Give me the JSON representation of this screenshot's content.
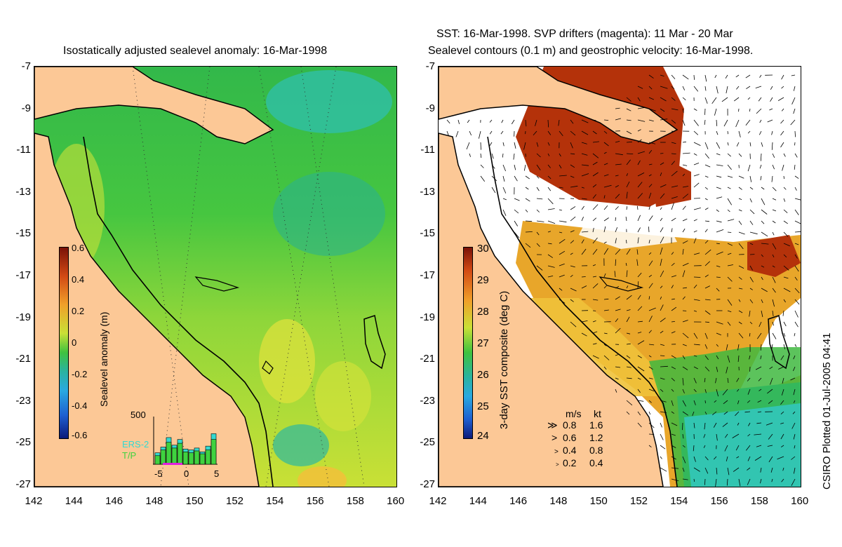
{
  "left_panel": {
    "title": "Isostatically adjusted sealevel anomaly: 16-Mar-1998",
    "colorbar": {
      "label": "Sealevel anomaly (m)",
      "ticks": [
        "0.6",
        "0.4",
        "0.2",
        "0",
        "-0.2",
        "-0.4",
        "-0.6"
      ]
    },
    "histogram": {
      "ymax_label": "500",
      "legend_ers": "ERS-2",
      "legend_tp": "T/P",
      "xticks": [
        "-5",
        "0",
        "5"
      ],
      "bars": [
        {
          "ers": 120,
          "tp": 90
        },
        {
          "ers": 180,
          "tp": 150
        },
        {
          "ers": 280,
          "tp": 230
        },
        {
          "ers": 200,
          "tp": 170
        },
        {
          "ers": 260,
          "tp": 220
        },
        {
          "ers": 160,
          "tp": 130
        },
        {
          "ers": 150,
          "tp": 120
        },
        {
          "ers": 170,
          "tp": 140
        },
        {
          "ers": 130,
          "tp": 110
        },
        {
          "ers": 190,
          "tp": 150
        },
        {
          "ers": 320,
          "tp": 260
        }
      ]
    }
  },
  "right_panel": {
    "title_line1": "SST: 16-Mar-1998. SVP drifters (magenta): 11 Mar - 20 Mar",
    "title_line2": "Sealevel contours (0.1 m) and geostrophic velocity: 16-Mar-1998.",
    "colorbar": {
      "label": "3-day SST composite (deg C)",
      "ticks": [
        "30",
        "29",
        "28",
        "27",
        "26",
        "25",
        "24"
      ]
    },
    "velocity_legend": {
      "header_ms": "m/s",
      "header_kt": "kt",
      "rows": [
        {
          "ms": "0.8",
          "kt": "1.6"
        },
        {
          "ms": "0.6",
          "kt": "1.2"
        },
        {
          "ms": "0.4",
          "kt": "0.8"
        },
        {
          "ms": "0.2",
          "kt": "0.4"
        }
      ]
    }
  },
  "axes": {
    "y_ticks": [
      "-7",
      "-9",
      "-11",
      "-13",
      "-15",
      "-17",
      "-19",
      "-21",
      "-23",
      "-25",
      "-27"
    ],
    "x_ticks": [
      "142",
      "144",
      "146",
      "148",
      "150",
      "152",
      "154",
      "156",
      "158",
      "160"
    ]
  },
  "credit": "CSIRO Plotted 01-Jul-2005 04:41",
  "colors": {
    "land": "#fcc896",
    "sla_green": "#3fc23f",
    "sla_yellow": "#c8e43a",
    "sst_red": "#b4320a",
    "sst_orange": "#e89a2a",
    "sst_green": "#3fb83f",
    "sst_cyan": "#33c7c0"
  }
}
